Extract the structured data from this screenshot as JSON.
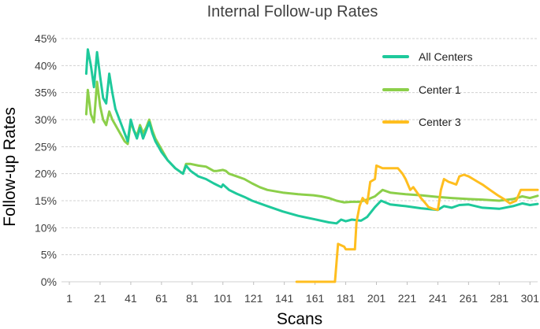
{
  "chart_data": {
    "type": "line",
    "title": "Internal Follow-up Rates",
    "xlabel": "Scans",
    "ylabel": "Follow-up Rates",
    "xlim": [
      1,
      306
    ],
    "ylim": [
      0,
      45
    ],
    "x_ticks": [
      1,
      21,
      41,
      61,
      81,
      101,
      121,
      141,
      161,
      181,
      201,
      221,
      241,
      261,
      281,
      301
    ],
    "y_ticks": [
      0,
      5,
      10,
      15,
      20,
      25,
      30,
      35,
      40,
      45
    ],
    "y_tick_labels": [
      "0%",
      "5%",
      "10%",
      "15%",
      "20%",
      "25%",
      "30%",
      "35%",
      "40%",
      "45%"
    ],
    "grid": true,
    "legend_position": "top-right",
    "series": [
      {
        "name": "All Centers",
        "color": "#1ec99b",
        "points": [
          [
            12,
            38.5
          ],
          [
            13,
            43
          ],
          [
            15,
            40
          ],
          [
            17,
            36
          ],
          [
            19,
            42.5
          ],
          [
            21,
            38
          ],
          [
            23,
            34
          ],
          [
            25,
            33
          ],
          [
            27,
            38.5
          ],
          [
            29,
            35
          ],
          [
            31,
            32
          ],
          [
            33,
            30.5
          ],
          [
            35,
            29
          ],
          [
            37,
            27.5
          ],
          [
            39,
            26
          ],
          [
            41,
            30
          ],
          [
            43,
            28
          ],
          [
            45,
            26.5
          ],
          [
            47,
            28.5
          ],
          [
            49,
            26.5
          ],
          [
            51,
            28
          ],
          [
            53,
            29.5
          ],
          [
            55,
            27.5
          ],
          [
            57,
            26
          ],
          [
            59,
            25
          ],
          [
            61,
            24
          ],
          [
            65,
            22.5
          ],
          [
            70,
            21
          ],
          [
            75,
            20
          ],
          [
            77,
            21.5
          ],
          [
            80,
            20.5
          ],
          [
            85,
            19.5
          ],
          [
            90,
            19
          ],
          [
            95,
            18.2
          ],
          [
            100,
            17.5
          ],
          [
            101,
            18
          ],
          [
            105,
            17
          ],
          [
            110,
            16.3
          ],
          [
            115,
            15.7
          ],
          [
            120,
            15
          ],
          [
            130,
            14
          ],
          [
            140,
            13
          ],
          [
            150,
            12.2
          ],
          [
            160,
            11.6
          ],
          [
            170,
            11
          ],
          [
            175,
            10.8
          ],
          [
            178,
            11.5
          ],
          [
            181,
            11.2
          ],
          [
            185,
            11.5
          ],
          [
            191,
            11.3
          ],
          [
            195,
            12
          ],
          [
            200,
            13.8
          ],
          [
            204,
            15
          ],
          [
            210,
            14.3
          ],
          [
            220,
            14
          ],
          [
            230,
            13.6
          ],
          [
            241,
            13.3
          ],
          [
            245,
            14
          ],
          [
            250,
            13.7
          ],
          [
            255,
            14.2
          ],
          [
            261,
            14.3
          ],
          [
            270,
            13.7
          ],
          [
            281,
            13.5
          ],
          [
            290,
            14
          ],
          [
            296,
            14.5
          ],
          [
            301,
            14.2
          ],
          [
            306,
            14.4
          ]
        ]
      },
      {
        "name": "Center 1",
        "color": "#8ccf4a",
        "points": [
          [
            12,
            31
          ],
          [
            13,
            35.5
          ],
          [
            15,
            31
          ],
          [
            17,
            29.5
          ],
          [
            19,
            37
          ],
          [
            21,
            32.5
          ],
          [
            23,
            30
          ],
          [
            25,
            29
          ],
          [
            27,
            31.5
          ],
          [
            29,
            30
          ],
          [
            31,
            29
          ],
          [
            33,
            28
          ],
          [
            35,
            27
          ],
          [
            37,
            26
          ],
          [
            39,
            25.5
          ],
          [
            41,
            29.5
          ],
          [
            43,
            28
          ],
          [
            45,
            27
          ],
          [
            47,
            29
          ],
          [
            49,
            27.5
          ],
          [
            51,
            28.5
          ],
          [
            53,
            30
          ],
          [
            55,
            28
          ],
          [
            57,
            26.5
          ],
          [
            59,
            25.5
          ],
          [
            61,
            24.5
          ],
          [
            65,
            22.5
          ],
          [
            70,
            21
          ],
          [
            75,
            20
          ],
          [
            77,
            21.8
          ],
          [
            80,
            21.8
          ],
          [
            85,
            21.5
          ],
          [
            90,
            21.3
          ],
          [
            95,
            20.5
          ],
          [
            97,
            20.5
          ],
          [
            101,
            20.7
          ],
          [
            103,
            20.5
          ],
          [
            105,
            20
          ],
          [
            110,
            19.5
          ],
          [
            115,
            19
          ],
          [
            120,
            18.2
          ],
          [
            125,
            17.5
          ],
          [
            130,
            17
          ],
          [
            140,
            16.5
          ],
          [
            150,
            16.2
          ],
          [
            160,
            16
          ],
          [
            165,
            15.8
          ],
          [
            170,
            15.5
          ],
          [
            175,
            15
          ],
          [
            180,
            14.7
          ],
          [
            185,
            14.8
          ],
          [
            190,
            14.8
          ],
          [
            195,
            15.2
          ],
          [
            200,
            15.8
          ],
          [
            205,
            17
          ],
          [
            210,
            16.5
          ],
          [
            220,
            16.2
          ],
          [
            230,
            16
          ],
          [
            241,
            15.7
          ],
          [
            250,
            15.5
          ],
          [
            261,
            15.3
          ],
          [
            270,
            15.2
          ],
          [
            281,
            15
          ],
          [
            290,
            15.3
          ],
          [
            296,
            15.8
          ],
          [
            301,
            15.5
          ],
          [
            306,
            15.9
          ]
        ]
      },
      {
        "name": "Center 3",
        "color": "#ffbe1f",
        "points": [
          [
            149,
            0
          ],
          [
            174,
            0
          ],
          [
            176,
            7
          ],
          [
            180,
            6.5
          ],
          [
            181,
            6
          ],
          [
            187,
            6
          ],
          [
            188,
            11
          ],
          [
            190,
            14
          ],
          [
            192,
            15.5
          ],
          [
            195,
            14.5
          ],
          [
            197,
            18.5
          ],
          [
            200,
            19
          ],
          [
            201,
            21.5
          ],
          [
            205,
            21
          ],
          [
            210,
            21
          ],
          [
            215,
            21
          ],
          [
            218,
            20
          ],
          [
            220,
            19
          ],
          [
            223,
            17
          ],
          [
            225,
            17.5
          ],
          [
            230,
            15.5
          ],
          [
            233,
            14.5
          ],
          [
            235,
            13.8
          ],
          [
            238,
            13.5
          ],
          [
            241,
            13.3
          ],
          [
            243,
            17
          ],
          [
            245,
            19
          ],
          [
            248,
            18.5
          ],
          [
            250,
            18.3
          ],
          [
            253,
            18
          ],
          [
            255,
            19.5
          ],
          [
            258,
            19.8
          ],
          [
            261,
            19.5
          ],
          [
            264,
            19
          ],
          [
            267,
            18.5
          ],
          [
            270,
            18
          ],
          [
            275,
            17
          ],
          [
            280,
            16
          ],
          [
            284,
            15.3
          ],
          [
            288,
            14.5
          ],
          [
            292,
            15
          ],
          [
            295,
            17
          ],
          [
            300,
            17
          ],
          [
            306,
            17
          ]
        ]
      }
    ]
  }
}
